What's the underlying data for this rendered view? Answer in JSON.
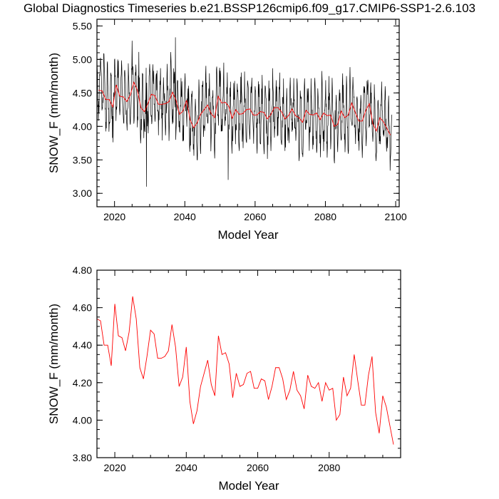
{
  "title": "Global Diagnostics Timeseries b.e21.BSSP126cmip6.f09_g17.CMIP6-SSP1-2.6.103",
  "colors": {
    "monthly": "#000000",
    "annual": "#ff0000",
    "frame": "#000000"
  },
  "chart_data": [
    {
      "type": "line",
      "xlabel": "Model Year",
      "ylabel": "SNOW_F (mm/month)",
      "xlim": [
        2015,
        2101
      ],
      "ylim": [
        2.8,
        5.6
      ],
      "xticks": [
        "2020",
        "2040",
        "2060",
        "2080",
        "2100"
      ],
      "yticks": [
        "3.00",
        "3.50",
        "4.00",
        "4.50",
        "5.00",
        "5.50"
      ],
      "series": [
        {
          "kind": "monthly",
          "color": "#000000",
          "x_start": 2015.0,
          "x_step": 0.0833333,
          "amplitude": [
            0.35,
            0.44
          ],
          "noise": 0.25,
          "notable_points": [
            [
              2029.1,
              3.1
            ],
            [
              2037.3,
              5.33
            ],
            [
              2052.3,
              3.2
            ],
            [
              2099.3,
              3.25
            ]
          ]
        },
        {
          "kind": "annual",
          "color": "#ff0000",
          "x_start": 2015.5,
          "x_step": 1
        }
      ]
    },
    {
      "type": "line",
      "xlabel": "Model Year",
      "ylabel": "SNOW_F (mm/month)",
      "xlim": [
        2015,
        2100
      ],
      "ylim": [
        3.8,
        4.8
      ],
      "xticks": [
        "2020",
        "2040",
        "2060",
        "2080"
      ],
      "yticks": [
        "3.80",
        "4.00",
        "4.20",
        "4.40",
        "4.60",
        "4.80"
      ],
      "series": [
        {
          "kind": "annual",
          "color": "#ff0000",
          "x_start": 2015,
          "x_step": 1,
          "values": [
            4.54,
            4.53,
            4.4,
            4.4,
            4.29,
            4.62,
            4.45,
            4.44,
            4.37,
            4.47,
            4.66,
            4.54,
            4.28,
            4.22,
            4.34,
            4.48,
            4.46,
            4.33,
            4.33,
            4.34,
            4.37,
            4.51,
            4.39,
            4.18,
            4.23,
            4.39,
            4.1,
            3.98,
            4.05,
            4.18,
            4.25,
            4.32,
            4.19,
            4.13,
            4.45,
            4.35,
            4.36,
            4.3,
            4.12,
            4.25,
            4.18,
            4.19,
            4.25,
            4.26,
            4.17,
            4.17,
            4.22,
            4.21,
            4.11,
            4.18,
            4.28,
            4.28,
            4.22,
            4.11,
            4.16,
            4.26,
            4.16,
            4.13,
            4.06,
            4.24,
            4.18,
            4.17,
            4.2,
            4.1,
            4.2,
            4.16,
            4.17,
            4.0,
            4.03,
            4.23,
            4.13,
            4.17,
            4.35,
            4.21,
            4.08,
            4.08,
            4.24,
            4.34,
            4.04,
            3.93,
            4.13,
            4.07,
            3.97,
            3.87
          ]
        }
      ]
    }
  ]
}
